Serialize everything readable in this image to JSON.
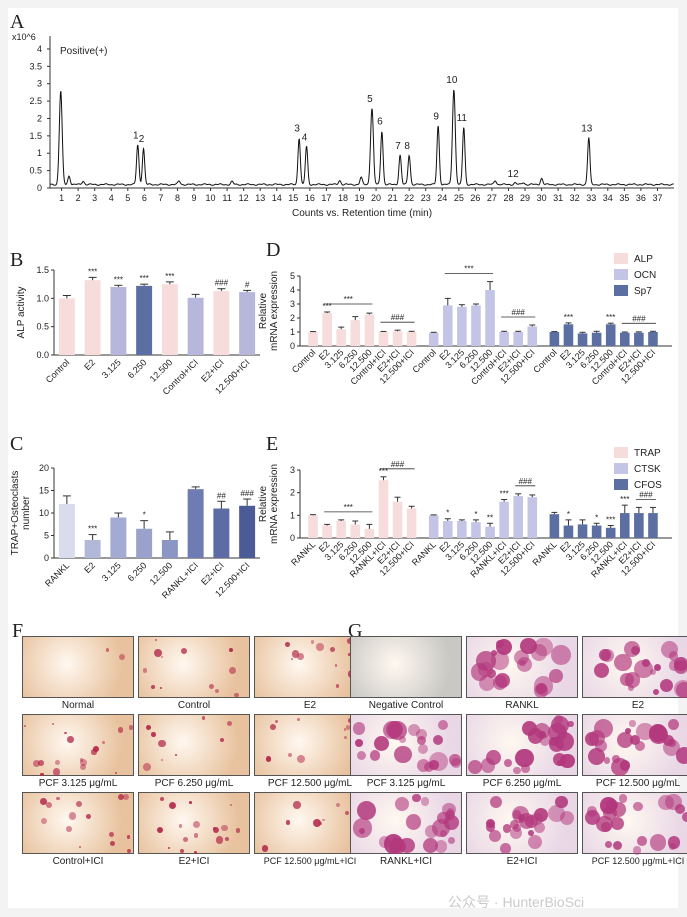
{
  "panel_labels": {
    "A": "A",
    "B": "B",
    "C": "C",
    "D": "D",
    "E": "E",
    "F": "F",
    "G": "G"
  },
  "chart_data": [
    {
      "id": "A",
      "type": "line",
      "title": "",
      "annotation": "Positive(+)",
      "xlabel": "Counts vs. Retention time (min)",
      "ylabel_multiplier": "x10^6",
      "xlim": [
        0.3,
        38
      ],
      "ylim": [
        0,
        4.2
      ],
      "xticks": [
        1,
        2,
        3,
        4,
        5,
        6,
        7,
        8,
        9,
        10,
        11,
        12,
        13,
        14,
        15,
        16,
        17,
        18,
        19,
        20,
        21,
        22,
        23,
        24,
        25,
        26,
        27,
        28,
        29,
        30,
        31,
        32,
        33,
        34,
        35,
        36,
        37
      ],
      "yticks": [
        0,
        0.5,
        1,
        1.5,
        2,
        2.5,
        3,
        3.5,
        4
      ],
      "baseline": 0.1,
      "peaks": [
        {
          "x": 0.95,
          "y": 2.8,
          "label": ""
        },
        {
          "x": 5.6,
          "y": 1.25,
          "label": "1"
        },
        {
          "x": 5.95,
          "y": 1.15,
          "label": "2"
        },
        {
          "x": 15.35,
          "y": 1.45,
          "label": "3"
        },
        {
          "x": 15.8,
          "y": 1.2,
          "label": "4"
        },
        {
          "x": 19.75,
          "y": 2.3,
          "label": "5"
        },
        {
          "x": 20.35,
          "y": 1.65,
          "label": "6"
        },
        {
          "x": 21.45,
          "y": 0.95,
          "label": "7"
        },
        {
          "x": 22.0,
          "y": 0.95,
          "label": "8"
        },
        {
          "x": 23.75,
          "y": 1.8,
          "label": "9"
        },
        {
          "x": 24.7,
          "y": 2.85,
          "label": "10"
        },
        {
          "x": 25.3,
          "y": 1.75,
          "label": "11"
        },
        {
          "x": 28.4,
          "y": 0.15,
          "label": "12"
        },
        {
          "x": 32.85,
          "y": 1.45,
          "label": "13"
        }
      ],
      "minor_peaks": [
        {
          "x": 1.45,
          "y": 0.35
        },
        {
          "x": 2.3,
          "y": 0.2
        },
        {
          "x": 8.1,
          "y": 0.2
        },
        {
          "x": 11.3,
          "y": 0.18
        },
        {
          "x": 17.8,
          "y": 0.22
        },
        {
          "x": 19.1,
          "y": 0.3
        },
        {
          "x": 27.2,
          "y": 0.22
        },
        {
          "x": 28.9,
          "y": 0.16
        },
        {
          "x": 30.0,
          "y": 0.28
        }
      ]
    },
    {
      "id": "B",
      "type": "bar",
      "ylabel": "ALP activity",
      "ylim": [
        0,
        1.5
      ],
      "yticks": [
        0,
        0.5,
        1.0,
        1.5
      ],
      "categories": [
        "Control",
        "E2",
        "3.125",
        "6.250",
        "12.500",
        "Control+ICI",
        "E2+ICI",
        "12.500+ICI"
      ],
      "values": [
        1.0,
        1.32,
        1.2,
        1.22,
        1.25,
        1.01,
        1.13,
        1.11
      ],
      "errors": [
        0.05,
        0.05,
        0.03,
        0.03,
        0.04,
        0.06,
        0.04,
        0.03
      ],
      "colors": [
        "#f7dcdc",
        "#f7dcdc",
        "#b7b7dc",
        "#5c6fa3",
        "#f7dcdc",
        "#b7b7dc",
        "#f7dcdc",
        "#b7b7dc"
      ],
      "significance": [
        "",
        "***",
        "***",
        "***",
        "***",
        "",
        "###",
        "#"
      ]
    },
    {
      "id": "C",
      "type": "bar",
      "ylabel": "TRAP+Osteoclasts\nnumber",
      "ylim": [
        0,
        20
      ],
      "yticks": [
        0,
        5,
        10,
        15,
        20
      ],
      "categories": [
        "RANKL",
        "E2",
        "3.125",
        "6.250",
        "12.500",
        "RANKL+ICI",
        "E2+ICI",
        "12.500+ICI"
      ],
      "values": [
        12,
        4,
        9,
        6.5,
        4,
        15.3,
        11,
        11.6
      ],
      "errors": [
        1.8,
        1.2,
        1.0,
        1.8,
        1.8,
        0.5,
        1.6,
        1.5
      ],
      "colors": [
        "#d9dcec",
        "#b2b8d8",
        "#a3abd2",
        "#9aa2cc",
        "#8c96c4",
        "#6f7cb3",
        "#5e6ca6",
        "#4c5b95"
      ],
      "significance": [
        "",
        "***",
        "",
        "*",
        "",
        "",
        "##",
        "###"
      ]
    },
    {
      "id": "D",
      "type": "bar",
      "ylabel": "Relative\nmRNA expression",
      "ylim": [
        0,
        5
      ],
      "yticks": [
        0,
        1,
        2,
        3,
        4,
        5
      ],
      "legend": [
        {
          "name": "ALP",
          "color": "#f7dcdc"
        },
        {
          "name": "OCN",
          "color": "#c4c4e6"
        },
        {
          "name": "Sp7",
          "color": "#5c6fa3"
        }
      ],
      "legend_position": "top-right",
      "categories": [
        "Control",
        "E2",
        "3.125",
        "6.250",
        "12.500",
        "Control+ICI",
        "E2+ICI",
        "12.500+ICI"
      ],
      "series": [
        {
          "name": "ALP",
          "values": [
            1.0,
            2.35,
            1.2,
            1.85,
            2.25,
            1.0,
            1.05,
            1.0
          ],
          "errors": [
            0.03,
            0.08,
            0.15,
            0.25,
            0.1,
            0.04,
            0.08,
            0.05
          ],
          "bracket_sig": [
            {
              "from": 1,
              "to": 4,
              "label": "***"
            },
            {
              "from": 5,
              "to": 7,
              "label": "###"
            }
          ],
          "point_sig": [
            {
              "index": 1,
              "label": "***"
            }
          ]
        },
        {
          "name": "OCN",
          "values": [
            0.95,
            2.9,
            2.8,
            2.9,
            4.0,
            1.0,
            1.0,
            1.4
          ],
          "errors": [
            0.03,
            0.5,
            0.15,
            0.1,
            0.6,
            0.05,
            0.05,
            0.1
          ],
          "bracket_sig": [
            {
              "from": 1,
              "to": 4,
              "label": "***"
            },
            {
              "from": 5,
              "to": 7,
              "label": "###"
            }
          ],
          "point_sig": []
        },
        {
          "name": "Sp7",
          "values": [
            1.0,
            1.55,
            0.9,
            0.95,
            1.55,
            0.95,
            0.95,
            1.0
          ],
          "errors": [
            0.03,
            0.1,
            0.08,
            0.1,
            0.08,
            0.05,
            0.06,
            0.05
          ],
          "bracket_sig": [
            {
              "from": 5,
              "to": 7,
              "label": "###"
            }
          ],
          "point_sig": [
            {
              "index": 1,
              "label": "***"
            },
            {
              "index": 4,
              "label": "***"
            }
          ]
        }
      ]
    },
    {
      "id": "E",
      "type": "bar",
      "ylabel": "Relative\nmRNA expression",
      "ylim": [
        0,
        3
      ],
      "yticks": [
        0,
        1,
        2,
        3
      ],
      "legend": [
        {
          "name": "TRAP",
          "color": "#f7dcdc"
        },
        {
          "name": "CTSK",
          "color": "#c4c4e6"
        },
        {
          "name": "CFOS",
          "color": "#5c6fa3"
        }
      ],
      "legend_position": "top-right",
      "categories": [
        "RANKL",
        "E2",
        "3.125",
        "6.250",
        "12.500",
        "RANKL+ICI",
        "E2+ICI",
        "12.500+ICI"
      ],
      "series": [
        {
          "name": "TRAP",
          "values": [
            1.0,
            0.55,
            0.75,
            0.6,
            0.4,
            2.55,
            1.6,
            1.3
          ],
          "errors": [
            0.03,
            0.05,
            0.05,
            0.15,
            0.2,
            0.15,
            0.2,
            0.1
          ],
          "bracket_sig": [
            {
              "from": 1,
              "to": 4,
              "label": "***"
            },
            {
              "from": 5,
              "to": 7,
              "label": "###"
            }
          ],
          "point_sig": [
            {
              "index": 5,
              "label": "***"
            }
          ]
        },
        {
          "name": "CTSK",
          "values": [
            1.0,
            0.75,
            0.75,
            0.7,
            0.5,
            1.6,
            1.85,
            1.8
          ],
          "errors": [
            0.02,
            0.1,
            0.05,
            0.1,
            0.15,
            0.1,
            0.1,
            0.1
          ],
          "bracket_sig": [
            {
              "from": 6,
              "to": 7,
              "label": "###"
            }
          ],
          "point_sig": [
            {
              "index": 1,
              "label": "*"
            },
            {
              "index": 3,
              "label": "*"
            },
            {
              "index": 4,
              "label": "**"
            },
            {
              "index": 5,
              "label": "***"
            }
          ]
        },
        {
          "name": "CFOS",
          "values": [
            1.05,
            0.55,
            0.6,
            0.55,
            0.45,
            1.1,
            1.1,
            1.1
          ],
          "errors": [
            0.08,
            0.25,
            0.2,
            0.1,
            0.1,
            0.35,
            0.25,
            0.25
          ],
          "bracket_sig": [
            {
              "from": 6,
              "to": 7,
              "label": "###"
            }
          ],
          "point_sig": [
            {
              "index": 1,
              "label": "*"
            },
            {
              "index": 3,
              "label": "*"
            },
            {
              "index": 4,
              "label": "***"
            },
            {
              "index": 5,
              "label": "***"
            }
          ]
        }
      ]
    }
  ],
  "panel_F": {
    "captions": [
      "Normal",
      "Control",
      "E2",
      "PCF 3.125 μg/mL",
      "PCF 6.250 μg/mL",
      "PCF 12.500 μg/mL",
      "Control+ICI",
      "E2+ICI",
      "PCF 12.500 μg/mL+ICI"
    ],
    "background_color": "#e8c29e",
    "stain_color": "#b3284a"
  },
  "panel_G": {
    "captions": [
      "Negative Control",
      "RANKL",
      "E2",
      "PCF 3.125 μg/mL",
      "PCF 6.250 μg/mL",
      "PCF 12.500 μg/mL",
      "RANKL+ICI",
      "E2+ICI",
      "PCF 12.500 μg/mL+ICI"
    ],
    "background_color": "#e9d7e6",
    "stain_color": "#b2377c",
    "watermark": "公众号 · HunterBioSci"
  }
}
